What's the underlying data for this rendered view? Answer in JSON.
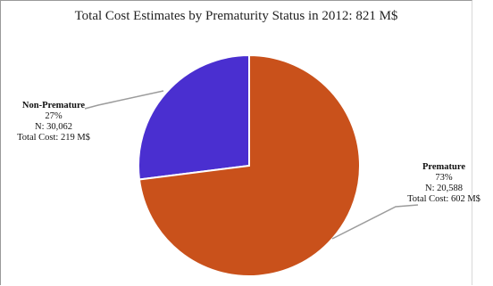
{
  "chart_data": {
    "type": "pie",
    "title": "Total Cost Estimates by Prematurity Status in 2012: 821 M$",
    "slices": [
      {
        "name": "Non-Premature",
        "percent": 27,
        "percent_text": "27%",
        "n_text": "N: 30,062",
        "cost_text": "Total Cost: 219 M$",
        "color": "#4a2fd0"
      },
      {
        "name": "Premature",
        "percent": 73,
        "percent_text": "73%",
        "n_text": "N: 20,588",
        "cost_text": "Total Cost: 602 M$",
        "color": "#c9511b"
      }
    ]
  }
}
